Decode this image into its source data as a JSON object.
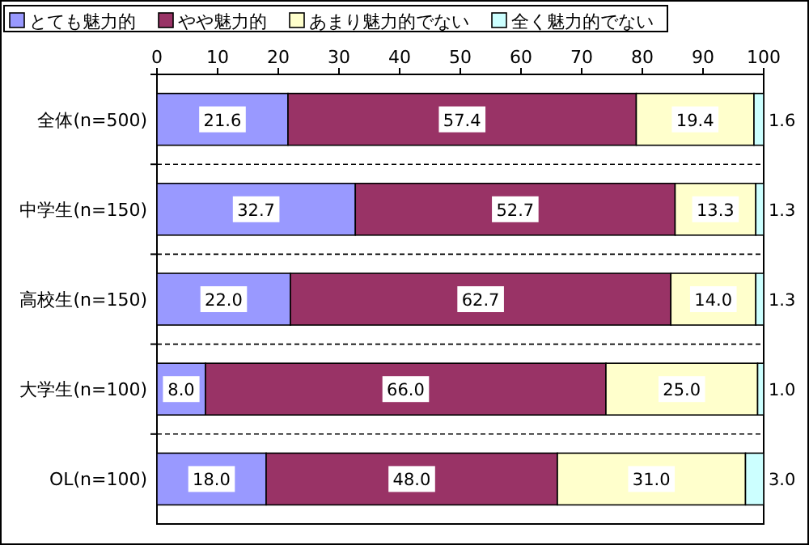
{
  "chart_data": {
    "type": "bar",
    "orientation": "horizontal",
    "stacked": true,
    "categories": [
      "全体(n=500)",
      "中学生(n=150)",
      "高校生(n=150)",
      "大学生(n=100)",
      "OL(n=100)"
    ],
    "series": [
      {
        "name": "とても魅力的",
        "color": "#9999ff",
        "values": [
          21.6,
          32.7,
          22.0,
          8.0,
          18.0
        ],
        "value_labels": [
          "21.6",
          "32.7",
          "22.0",
          "8.0",
          "18.0"
        ]
      },
      {
        "name": "やや魅力的",
        "color": "#993366",
        "values": [
          57.4,
          52.7,
          62.7,
          66.0,
          48.0
        ],
        "value_labels": [
          "57.4",
          "52.7",
          "62.7",
          "66.0",
          "48.0"
        ]
      },
      {
        "name": "あまり魅力的でない",
        "color": "#ffffcc",
        "values": [
          19.4,
          13.3,
          14.0,
          25.0,
          31.0
        ],
        "value_labels": [
          "19.4",
          "13.3",
          "14.0",
          "25.0",
          "31.0"
        ]
      },
      {
        "name": "全く魅力的でない",
        "color": "#ccffff",
        "values": [
          1.6,
          1.3,
          1.3,
          1.0,
          3.0
        ],
        "value_labels": [
          "1.6",
          "1.3",
          "1.3",
          "1.0",
          "3.0"
        ]
      }
    ],
    "xlim": [
      0,
      100
    ],
    "xticks": [
      0,
      10,
      20,
      30,
      40,
      50,
      60,
      70,
      80,
      90,
      100
    ],
    "grid": "y",
    "legend": "top"
  }
}
